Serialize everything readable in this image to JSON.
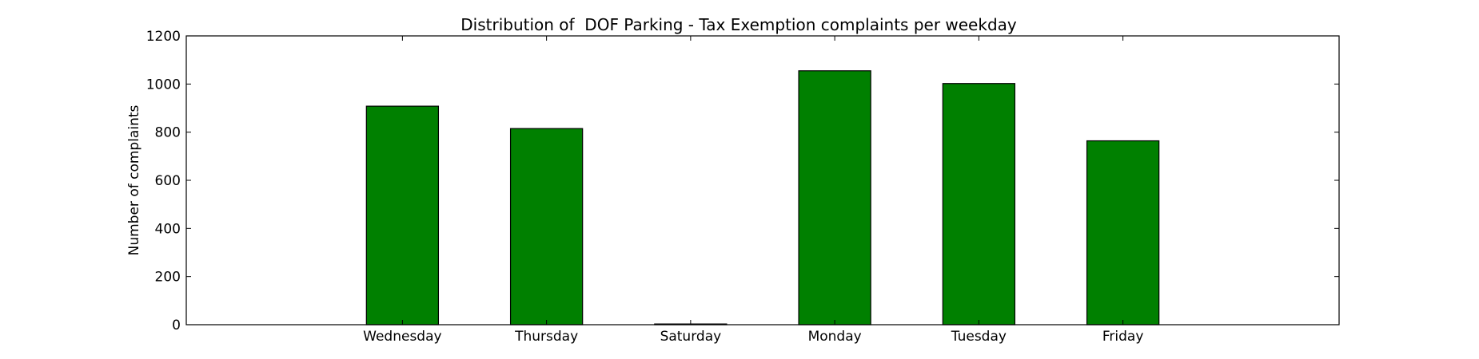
{
  "chart_data": {
    "type": "bar",
    "title": "Distribution of  DOF Parking - Tax Exemption complaints per weekday",
    "xlabel": "",
    "ylabel": "Number of complaints",
    "categories": [
      "Wednesday",
      "Thursday",
      "Saturday",
      "Monday",
      "Tuesday",
      "Friday"
    ],
    "values": [
      908,
      815,
      3,
      1055,
      1002,
      764
    ],
    "ylim": [
      0,
      1200
    ],
    "yticks": [
      0,
      200,
      400,
      600,
      800,
      1000,
      1200
    ],
    "bar_color": "#008000",
    "grid": false,
    "legend": "none"
  }
}
